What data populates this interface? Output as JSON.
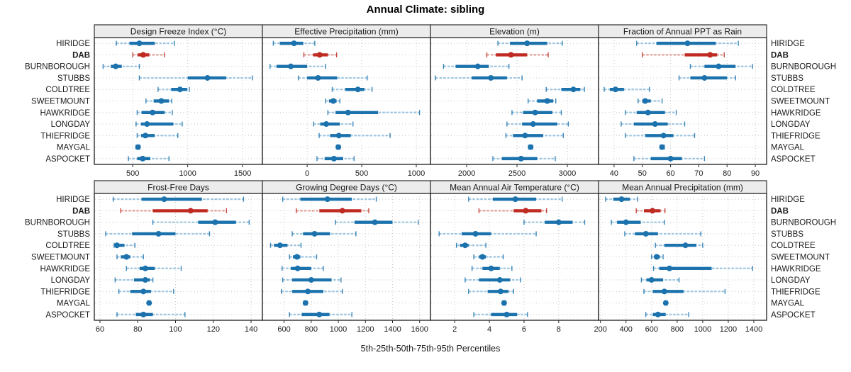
{
  "colors": {
    "series_main": "#1b72ad",
    "series_light": "#9cc5e0",
    "highlight_main": "#bf2b23",
    "highlight_light": "#e2a09a",
    "grid": "#c9c9c9",
    "panel_border": "#2e2e2e",
    "strip_bg": "#ececec",
    "text": "#1a1a1a"
  },
  "chart_data": {
    "type": "scatter",
    "subtype": "multi-panel percentile intervals (5-25-50-75-95)",
    "title": "Annual Climate: sibling",
    "xlabel": "5th-25th-50th-75th-95th Percentiles",
    "legend_position": "none",
    "grid": "dotted",
    "percentile_levels": [
      5,
      25,
      50,
      75,
      95
    ],
    "highlight": "DAB",
    "stations": [
      "HIRIDGE",
      "DAB",
      "BURNBOROUGH",
      "STUBBS",
      "COLDTREE",
      "SWEETMOUNT",
      "HAWKRIDGE",
      "LONGDAY",
      "THIEFRIDGE",
      "MAYGAL",
      "ASPOCKET"
    ],
    "panels": [
      {
        "title": "Design Freeze Index (°C)",
        "row": 0,
        "col": 0,
        "xlim": [
          150,
          1680
        ],
        "ticks": [
          500,
          1000,
          1500
        ],
        "values": [
          [
            350,
            470,
            560,
            700,
            880
          ],
          [
            500,
            545,
            595,
            650,
            790
          ],
          [
            230,
            300,
            345,
            400,
            560
          ],
          [
            560,
            1000,
            1180,
            1350,
            1590
          ],
          [
            730,
            850,
            930,
            995,
            1015
          ],
          [
            620,
            690,
            760,
            830,
            855
          ],
          [
            540,
            580,
            680,
            790,
            860
          ],
          [
            530,
            575,
            630,
            870,
            950
          ],
          [
            540,
            575,
            615,
            700,
            910
          ],
          [
            530,
            540,
            548,
            556,
            565
          ],
          [
            460,
            540,
            590,
            660,
            830
          ]
        ]
      },
      {
        "title": "Effective Precipitation (mm)",
        "row": 0,
        "col": 1,
        "xlim": [
          -410,
          1130
        ],
        "ticks": [
          0,
          500,
          1000
        ],
        "values": [
          [
            -310,
            -250,
            -120,
            -35,
            70
          ],
          [
            -30,
            55,
            115,
            190,
            270
          ],
          [
            -340,
            -280,
            -150,
            0,
            170
          ],
          [
            -80,
            0,
            100,
            275,
            550
          ],
          [
            230,
            350,
            465,
            525,
            595
          ],
          [
            170,
            200,
            240,
            270,
            300
          ],
          [
            190,
            260,
            375,
            650,
            1030
          ],
          [
            60,
            120,
            175,
            300,
            420
          ],
          [
            110,
            210,
            290,
            400,
            760
          ],
          [
            268,
            278,
            286,
            294,
            302
          ],
          [
            90,
            160,
            245,
            330,
            430
          ]
        ]
      },
      {
        "title": "Elevation (m)",
        "row": 0,
        "col": 2,
        "xlim": [
          1640,
          3310
        ],
        "ticks": [
          2000,
          2500,
          3000
        ],
        "values": [
          [
            2310,
            2430,
            2600,
            2800,
            2950
          ],
          [
            2200,
            2290,
            2440,
            2600,
            2810
          ],
          [
            1770,
            1890,
            2110,
            2220,
            2420
          ],
          [
            1690,
            2050,
            2240,
            2400,
            2550
          ],
          [
            2790,
            2940,
            3060,
            3130,
            3170
          ],
          [
            2610,
            2700,
            2800,
            2860,
            2885
          ],
          [
            2450,
            2560,
            2680,
            2850,
            2940
          ],
          [
            2400,
            2550,
            2660,
            2900,
            3010
          ],
          [
            2390,
            2460,
            2580,
            2760,
            2960
          ],
          [
            2615,
            2625,
            2635,
            2645,
            2655
          ],
          [
            2260,
            2350,
            2540,
            2700,
            2880
          ]
        ]
      },
      {
        "title": "Fraction of Annual PPT as Rain",
        "row": 0,
        "col": 3,
        "xlim": [
          34.5,
          94
        ],
        "ticks": [
          40,
          50,
          60,
          70,
          80,
          90
        ],
        "values": [
          [
            48,
            55,
            66,
            76,
            84
          ],
          [
            50,
            65,
            74,
            76.5,
            79
          ],
          [
            67,
            72,
            77,
            83,
            89
          ],
          [
            63,
            67,
            72,
            80,
            83
          ],
          [
            36.5,
            38.5,
            40.5,
            43.5,
            52.5
          ],
          [
            48.5,
            50,
            51,
            53,
            57
          ],
          [
            44,
            48,
            52,
            58,
            62
          ],
          [
            42.5,
            47,
            54.5,
            59,
            65
          ],
          [
            44,
            51,
            57.5,
            61,
            68.5
          ],
          [
            56.3,
            56.7,
            57,
            57.4,
            57.8
          ],
          [
            47,
            53,
            60,
            64,
            72
          ]
        ]
      },
      {
        "title": "Frost-Free Days",
        "row": 1,
        "col": 0,
        "xlim": [
          57,
          146
        ],
        "ticks": [
          60,
          80,
          100,
          120,
          140
        ],
        "values": [
          [
            67,
            82,
            94,
            114,
            136
          ],
          [
            71,
            88,
            108,
            117,
            127
          ],
          [
            88,
            112,
            121,
            132,
            139
          ],
          [
            63,
            77,
            91,
            100,
            118
          ],
          [
            67.5,
            68,
            69,
            73,
            78.5
          ],
          [
            69,
            71,
            74,
            76,
            83
          ],
          [
            74,
            81,
            84,
            89,
            103
          ],
          [
            68,
            78,
            84,
            86.5,
            88
          ],
          [
            70,
            76,
            83,
            87,
            99
          ],
          [
            85.2,
            85.7,
            86,
            86.4,
            86.8
          ],
          [
            69,
            79,
            83,
            88,
            105
          ]
        ]
      },
      {
        "title": "Growing Degree Days (°C)",
        "row": 1,
        "col": 1,
        "xlim": [
          440,
          1680
        ],
        "ticks": [
          600,
          800,
          1000,
          1200,
          1400,
          1600
        ],
        "values": [
          [
            590,
            720,
            920,
            1100,
            1280
          ],
          [
            690,
            860,
            1030,
            1170,
            1225
          ],
          [
            980,
            1120,
            1270,
            1400,
            1590
          ],
          [
            660,
            740,
            825,
            940,
            1130
          ],
          [
            500,
            525,
            570,
            625,
            725
          ],
          [
            640,
            665,
            695,
            720,
            840
          ],
          [
            585,
            650,
            700,
            800,
            890
          ],
          [
            590,
            660,
            800,
            950,
            1020
          ],
          [
            580,
            660,
            775,
            890,
            1030
          ],
          [
            745,
            752,
            758,
            764,
            770
          ],
          [
            640,
            730,
            860,
            935,
            1100
          ]
        ]
      },
      {
        "title": "Mean Annual Air Temperature (°C)",
        "row": 1,
        "col": 2,
        "xlim": [
          0.6,
          10.3
        ],
        "ticks": [
          2,
          4,
          6,
          8
        ],
        "values": [
          [
            2.8,
            4.2,
            5.5,
            6.7,
            8.2
          ],
          [
            3.4,
            5.4,
            6.1,
            7.0,
            7.3
          ],
          [
            6.0,
            7.2,
            8.0,
            8.8,
            9.5
          ],
          [
            1.1,
            2.4,
            3.2,
            4.1,
            6.7
          ],
          [
            2.1,
            2.3,
            2.6,
            2.8,
            3.8
          ],
          [
            3.1,
            3.4,
            3.6,
            3.8,
            4.8
          ],
          [
            3.0,
            3.6,
            4.1,
            4.6,
            5.3
          ],
          [
            2.6,
            3.4,
            4.6,
            5.2,
            5.8
          ],
          [
            2.8,
            3.9,
            4.65,
            5.1,
            5.4
          ],
          [
            4.75,
            4.8,
            4.85,
            4.9,
            4.95
          ],
          [
            3.1,
            4.1,
            5.0,
            5.6,
            6.2
          ]
        ]
      },
      {
        "title": "Mean Annual Precipitation (mm)",
        "row": 1,
        "col": 3,
        "xlim": [
          185,
          1500
        ],
        "ticks": [
          200,
          400,
          600,
          800,
          1000,
          1200,
          1400
        ],
        "values": [
          [
            240,
            300,
            365,
            430,
            490
          ],
          [
            480,
            540,
            607,
            670,
            705
          ],
          [
            285,
            330,
            400,
            515,
            700
          ],
          [
            390,
            470,
            555,
            650,
            985
          ],
          [
            630,
            700,
            865,
            950,
            1000
          ],
          [
            600,
            620,
            640,
            665,
            690
          ],
          [
            615,
            660,
            740,
            1070,
            1390
          ],
          [
            520,
            560,
            600,
            690,
            815
          ],
          [
            540,
            610,
            700,
            850,
            1175
          ],
          [
            700,
            706,
            711,
            716,
            722
          ],
          [
            555,
            610,
            650,
            710,
            890
          ]
        ]
      }
    ]
  }
}
